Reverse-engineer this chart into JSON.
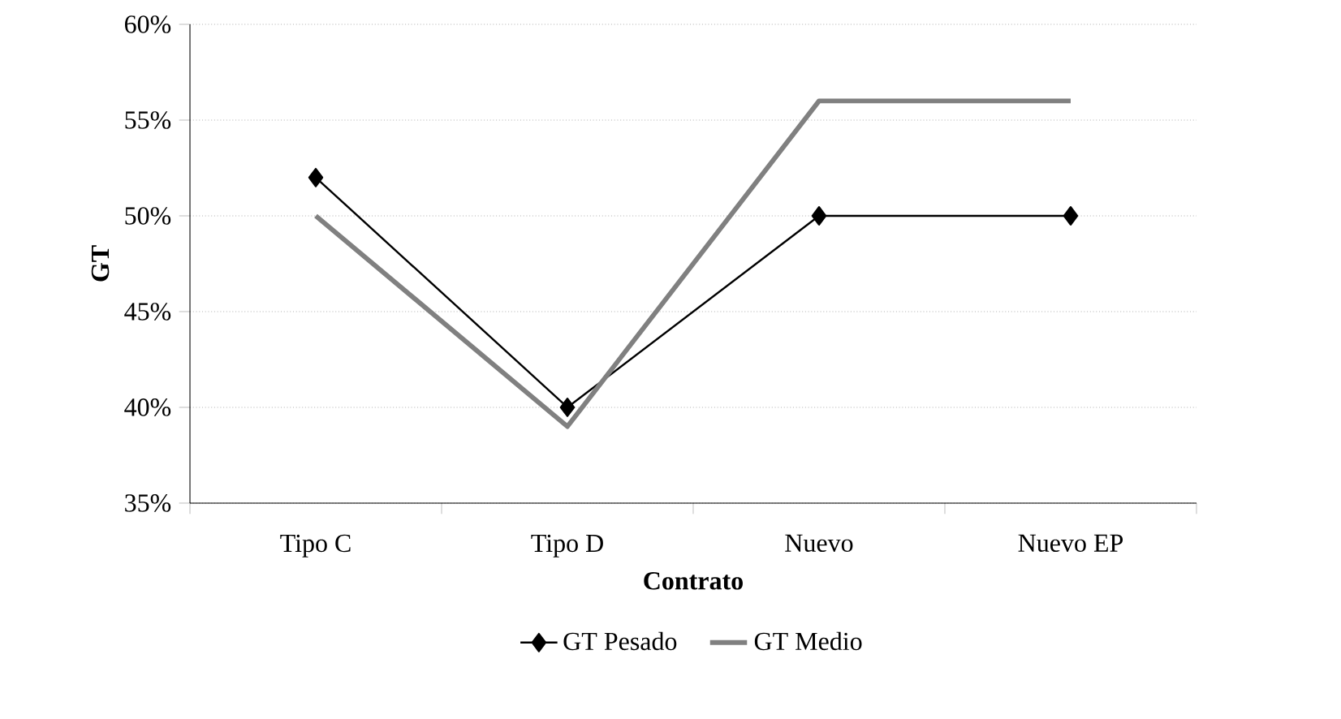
{
  "chart_data": {
    "type": "line",
    "xlabel": "Contrato",
    "ylabel": "GT",
    "categories": [
      "Tipo C",
      "Tipo D",
      "Nuevo",
      "Nuevo EP"
    ],
    "series": [
      {
        "name": "GT Pesado",
        "color": "#000000",
        "marker": "diamond",
        "values": [
          52,
          40,
          50,
          50
        ]
      },
      {
        "name": "GT Medio",
        "color": "#808080",
        "values": [
          50,
          39,
          56,
          56
        ]
      }
    ],
    "ylim": [
      35,
      60
    ],
    "yticks": [
      {
        "value": 35,
        "label": "35%"
      },
      {
        "value": 40,
        "label": "40%"
      },
      {
        "value": 45,
        "label": "45%"
      },
      {
        "value": 50,
        "label": "50%"
      },
      {
        "value": 55,
        "label": "55%"
      },
      {
        "value": 60,
        "label": "60%"
      }
    ],
    "grid": "y",
    "legend": "bottom"
  }
}
